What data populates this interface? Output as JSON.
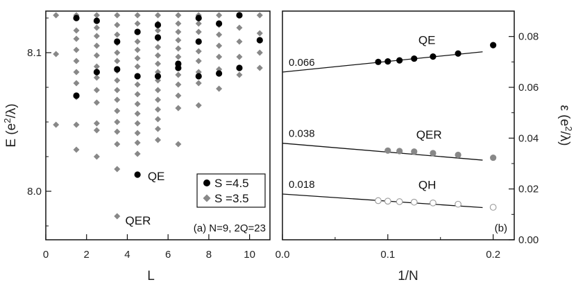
{
  "chart_data": [
    {
      "type": "scatter",
      "panel": "(a)",
      "panel_label": "(a) N=9, 2Q=23",
      "xlabel": "L",
      "ylabel_base": "E (e",
      "ylabel_sup": "2",
      "ylabel_end": "/λ)",
      "xlim": [
        0,
        11
      ],
      "ylim": [
        7.965,
        8.13
      ],
      "xticks": [
        0,
        2,
        4,
        6,
        8,
        10
      ],
      "yticks": [
        8.0,
        8.1
      ],
      "ytick_labels": [
        "8.0",
        "8.1"
      ],
      "grid": false,
      "legend": {
        "placement": "lower-right",
        "entries": [
          {
            "label": "S =4.5",
            "marker": "circle",
            "color": "#000000"
          },
          {
            "label": "S =3.5",
            "marker": "diamond",
            "color": "#888888"
          }
        ]
      },
      "annotations": [
        {
          "text": "QE",
          "x": 5.0,
          "y": 8.011
        },
        {
          "text": "QER",
          "x": 3.9,
          "y": 7.979
        }
      ],
      "series": [
        {
          "name": "S =3.5",
          "marker": "diamond",
          "color": "#888888",
          "points": [
            [
              0.5,
              8.127
            ],
            [
              0.5,
              8.099
            ],
            [
              0.5,
              8.048
            ],
            [
              1.5,
              8.127
            ],
            [
              1.5,
              8.116
            ],
            [
              1.5,
              8.11
            ],
            [
              1.5,
              8.102
            ],
            [
              1.5,
              8.094
            ],
            [
              1.5,
              8.086
            ],
            [
              1.5,
              8.078
            ],
            [
              1.5,
              8.068
            ],
            [
              1.5,
              8.048
            ],
            [
              1.5,
              8.03
            ],
            [
              2.5,
              8.127
            ],
            [
              2.5,
              8.118
            ],
            [
              2.5,
              8.112
            ],
            [
              2.5,
              8.105
            ],
            [
              2.5,
              8.098
            ],
            [
              2.5,
              8.09
            ],
            [
              2.5,
              8.082
            ],
            [
              2.5,
              8.073
            ],
            [
              2.5,
              8.064
            ],
            [
              2.5,
              8.049
            ],
            [
              2.5,
              8.044
            ],
            [
              2.5,
              8.025
            ],
            [
              3.5,
              8.127
            ],
            [
              3.5,
              8.12
            ],
            [
              3.5,
              8.113
            ],
            [
              3.5,
              8.107
            ],
            [
              3.5,
              8.1
            ],
            [
              3.5,
              8.094
            ],
            [
              3.5,
              8.087
            ],
            [
              3.5,
              8.08
            ],
            [
              3.5,
              8.073
            ],
            [
              3.5,
              8.066
            ],
            [
              3.5,
              8.058
            ],
            [
              3.5,
              8.05
            ],
            [
              3.5,
              8.043
            ],
            [
              3.5,
              8.034
            ],
            [
              3.5,
              8.016
            ],
            [
              3.5,
              7.982
            ],
            [
              4.5,
              8.127
            ],
            [
              4.5,
              8.121
            ],
            [
              4.5,
              8.115
            ],
            [
              4.5,
              8.108
            ],
            [
              4.5,
              8.102
            ],
            [
              4.5,
              8.096
            ],
            [
              4.5,
              8.09
            ],
            [
              4.5,
              8.083
            ],
            [
              4.5,
              8.077
            ],
            [
              4.5,
              8.07
            ],
            [
              4.5,
              8.063
            ],
            [
              4.5,
              8.056
            ],
            [
              4.5,
              8.049
            ],
            [
              4.5,
              8.042
            ],
            [
              4.5,
              8.035
            ],
            [
              4.5,
              8.027
            ],
            [
              5.5,
              8.127
            ],
            [
              5.5,
              8.121
            ],
            [
              5.5,
              8.116
            ],
            [
              5.5,
              8.11
            ],
            [
              5.5,
              8.104
            ],
            [
              5.5,
              8.098
            ],
            [
              5.5,
              8.092
            ],
            [
              5.5,
              8.086
            ],
            [
              5.5,
              8.08
            ],
            [
              5.5,
              8.073
            ],
            [
              5.5,
              8.066
            ],
            [
              5.5,
              8.059
            ],
            [
              5.5,
              8.052
            ],
            [
              5.5,
              8.045
            ],
            [
              5.5,
              8.037
            ],
            [
              6.5,
              8.127
            ],
            [
              6.5,
              8.121
            ],
            [
              6.5,
              8.115
            ],
            [
              6.5,
              8.109
            ],
            [
              6.5,
              8.103
            ],
            [
              6.5,
              8.097
            ],
            [
              6.5,
              8.091
            ],
            [
              6.5,
              8.084
            ],
            [
              6.5,
              8.077
            ],
            [
              6.5,
              8.069
            ],
            [
              6.5,
              8.06
            ],
            [
              6.5,
              8.034
            ],
            [
              7.5,
              8.127
            ],
            [
              7.5,
              8.121
            ],
            [
              7.5,
              8.115
            ],
            [
              7.5,
              8.108
            ],
            [
              7.5,
              8.101
            ],
            [
              7.5,
              8.094
            ],
            [
              7.5,
              8.086
            ],
            [
              7.5,
              8.078
            ],
            [
              7.5,
              8.062
            ],
            [
              8.5,
              8.127
            ],
            [
              8.5,
              8.12
            ],
            [
              8.5,
              8.113
            ],
            [
              8.5,
              8.105
            ],
            [
              8.5,
              8.097
            ],
            [
              8.5,
              8.088
            ],
            [
              8.5,
              8.074
            ],
            [
              9.5,
              8.127
            ],
            [
              9.5,
              8.118
            ],
            [
              9.5,
              8.108
            ],
            [
              9.5,
              8.097
            ],
            [
              9.5,
              8.084
            ],
            [
              10.5,
              8.127
            ],
            [
              10.5,
              8.114
            ],
            [
              10.5,
              8.1
            ],
            [
              10.5,
              8.089
            ]
          ]
        },
        {
          "name": "S =4.5",
          "marker": "circle",
          "color": "#000000",
          "points": [
            [
              1.5,
              8.125
            ],
            [
              1.5,
              8.069
            ],
            [
              2.5,
              8.123
            ],
            [
              2.5,
              8.086
            ],
            [
              3.5,
              8.108
            ],
            [
              3.5,
              8.088
            ],
            [
              4.5,
              8.115
            ],
            [
              4.5,
              8.083
            ],
            [
              4.5,
              8.012
            ],
            [
              5.5,
              8.12
            ],
            [
              5.5,
              8.111
            ],
            [
              5.5,
              8.083
            ],
            [
              6.5,
              8.092
            ],
            [
              6.5,
              8.089
            ],
            [
              7.5,
              8.125
            ],
            [
              7.5,
              8.108
            ],
            [
              7.5,
              8.083
            ],
            [
              8.5,
              8.121
            ],
            [
              8.5,
              8.085
            ],
            [
              9.5,
              8.127
            ],
            [
              9.5,
              8.089
            ],
            [
              10.5,
              8.109
            ]
          ]
        }
      ]
    },
    {
      "type": "scatter",
      "panel": "(b)",
      "panel_label": "(b)",
      "xlabel": "1/N",
      "ylabel_base": "ε (e",
      "ylabel_sup": "2",
      "ylabel_end": "/λ)",
      "xlim": [
        0.0,
        0.22
      ],
      "ylim": [
        0.0,
        0.09
      ],
      "xticks": [
        0.0,
        0.1,
        0.2
      ],
      "xtick_labels": [
        "0.0",
        "0.1",
        "0.2"
      ],
      "yticks": [
        0.0,
        0.02,
        0.04,
        0.06,
        0.08
      ],
      "ytick_labels": [
        "0.00",
        "0.02",
        "0.04",
        "0.06",
        "0.08"
      ],
      "grid": false,
      "series": [
        {
          "name": "QE",
          "marker": "filled-circle",
          "color": "#000000",
          "intercept_label": "0.066",
          "fit": {
            "intercept": 0.066,
            "slope": 0.042,
            "x_range": [
              0.0,
              0.19
            ]
          },
          "points": [
            [
              0.0909,
              0.07
            ],
            [
              0.1,
              0.0702
            ],
            [
              0.1111,
              0.0706
            ],
            [
              0.125,
              0.0713
            ],
            [
              0.1429,
              0.0721
            ],
            [
              0.1667,
              0.0733
            ],
            [
              0.2,
              0.0766
            ]
          ]
        },
        {
          "name": "QER",
          "marker": "gray-circle",
          "color": "#888888",
          "intercept_label": "0.038",
          "fit": {
            "intercept": 0.038,
            "slope": -0.035,
            "x_range": [
              0.0,
              0.19
            ]
          },
          "points": [
            [
              0.1,
              0.0351
            ],
            [
              0.1111,
              0.0349
            ],
            [
              0.125,
              0.0347
            ],
            [
              0.1429,
              0.0341
            ],
            [
              0.1667,
              0.0334
            ],
            [
              0.2,
              0.0323
            ]
          ]
        },
        {
          "name": "QH",
          "marker": "open-circle",
          "color": "#999999",
          "intercept_label": "0.018",
          "fit": {
            "intercept": 0.018,
            "slope": -0.028,
            "x_range": [
              0.0,
              0.19
            ]
          },
          "points": [
            [
              0.0909,
              0.0154
            ],
            [
              0.1,
              0.0152
            ],
            [
              0.1111,
              0.015
            ],
            [
              0.125,
              0.0148
            ],
            [
              0.1429,
              0.0145
            ],
            [
              0.1667,
              0.014
            ],
            [
              0.2,
              0.0128
            ]
          ]
        }
      ]
    }
  ]
}
